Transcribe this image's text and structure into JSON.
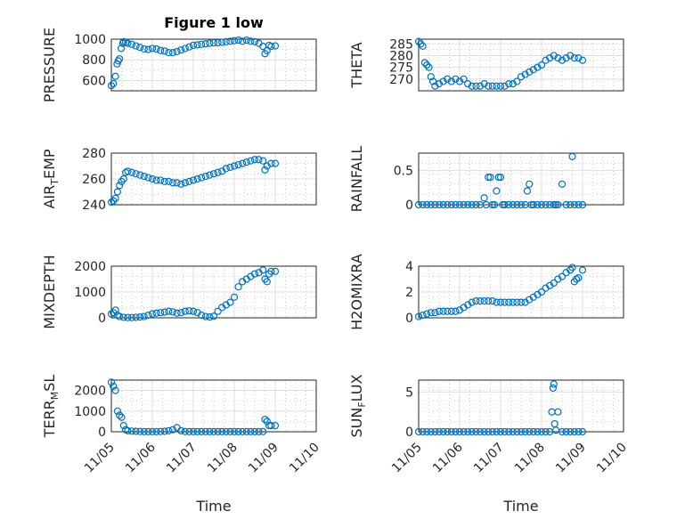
{
  "title": "Figure 1 low",
  "shared": {
    "xlabel": "Time",
    "xticks": [
      "11/05",
      "11/06",
      "11/07",
      "11/08",
      "11/09",
      "11/10"
    ],
    "marker_color": "#0072bd"
  },
  "chart_data": [
    {
      "type": "scatter",
      "ylabel": "PRESSURE",
      "ylim": [
        500,
        1000
      ],
      "yticks": [
        600,
        800,
        1000
      ],
      "x": [
        0,
        0.05,
        0.1,
        0.14,
        0.17,
        0.2,
        0.24,
        0.28,
        0.3,
        0.35,
        0.4,
        0.5,
        0.6,
        0.7,
        0.8,
        0.9,
        1.0,
        1.1,
        1.2,
        1.3,
        1.4,
        1.5,
        1.6,
        1.7,
        1.8,
        1.9,
        2.0,
        2.1,
        2.2,
        2.3,
        2.4,
        2.5,
        2.6,
        2.7,
        2.8,
        2.9,
        3.0,
        3.1,
        3.2,
        3.3,
        3.4,
        3.5,
        3.6,
        3.7,
        3.75,
        3.8,
        3.85,
        3.9,
        4.0
      ],
      "y": [
        550,
        570,
        640,
        760,
        790,
        810,
        910,
        960,
        975,
        970,
        960,
        950,
        935,
        920,
        905,
        900,
        910,
        905,
        890,
        885,
        870,
        870,
        880,
        895,
        910,
        925,
        940,
        945,
        950,
        955,
        960,
        965,
        965,
        970,
        975,
        980,
        985,
        990,
        980,
        990,
        980,
        975,
        960,
        930,
        860,
        890,
        940,
        930,
        935
      ]
    },
    {
      "type": "scatter",
      "ylabel": "THETA",
      "ylim": [
        265,
        287
      ],
      "yticks": [
        270,
        275,
        280,
        285
      ],
      "x": [
        0,
        0.05,
        0.1,
        0.15,
        0.2,
        0.25,
        0.3,
        0.35,
        0.4,
        0.5,
        0.6,
        0.7,
        0.8,
        0.9,
        1.0,
        1.1,
        1.2,
        1.3,
        1.4,
        1.5,
        1.6,
        1.7,
        1.8,
        1.9,
        2.0,
        2.1,
        2.2,
        2.3,
        2.4,
        2.5,
        2.6,
        2.7,
        2.8,
        2.9,
        3.0,
        3.1,
        3.2,
        3.3,
        3.4,
        3.5,
        3.6,
        3.7,
        3.8,
        3.9,
        4.0
      ],
      "y": [
        286,
        285,
        284,
        277,
        276,
        275,
        271,
        269,
        267,
        268,
        269,
        270,
        269,
        270,
        269,
        270,
        268,
        267,
        267,
        267,
        268,
        267,
        267,
        267,
        267,
        267,
        268,
        268,
        269,
        271,
        272,
        273,
        274,
        275,
        276,
        278,
        279,
        280,
        279,
        278,
        279,
        280,
        279,
        279,
        278
      ]
    },
    {
      "type": "scatter",
      "ylabel": "AIR_TEMP",
      "ylim": [
        240,
        280
      ],
      "yticks": [
        240,
        260,
        280
      ],
      "x": [
        0,
        0.05,
        0.1,
        0.15,
        0.2,
        0.25,
        0.3,
        0.35,
        0.4,
        0.5,
        0.6,
        0.7,
        0.8,
        0.9,
        1.0,
        1.1,
        1.2,
        1.3,
        1.4,
        1.5,
        1.6,
        1.7,
        1.8,
        1.9,
        2.0,
        2.1,
        2.2,
        2.3,
        2.4,
        2.5,
        2.6,
        2.7,
        2.8,
        2.9,
        3.0,
        3.1,
        3.2,
        3.3,
        3.4,
        3.5,
        3.6,
        3.7,
        3.75,
        3.8,
        3.9,
        4.0
      ],
      "y": [
        242,
        243,
        245,
        250,
        255,
        258,
        260,
        265,
        266,
        265,
        264,
        263,
        262,
        261,
        260,
        259,
        259,
        258,
        258,
        257,
        257,
        256,
        257,
        258,
        259,
        260,
        261,
        262,
        263,
        264,
        265,
        266,
        268,
        269,
        270,
        271,
        272,
        273,
        274,
        275,
        275,
        274,
        267,
        270,
        272,
        272
      ]
    },
    {
      "type": "scatter",
      "ylabel": "RAINFALL",
      "ylim": [
        0,
        0.75
      ],
      "yticks": [
        0,
        0.5
      ],
      "x": [
        0,
        0.1,
        0.2,
        0.3,
        0.4,
        0.5,
        0.6,
        0.7,
        0.8,
        0.9,
        1.0,
        1.1,
        1.2,
        1.3,
        1.4,
        1.5,
        1.6,
        1.65,
        1.7,
        1.75,
        1.8,
        1.85,
        1.9,
        1.95,
        2.0,
        2.05,
        2.1,
        2.2,
        2.3,
        2.4,
        2.5,
        2.6,
        2.65,
        2.7,
        2.75,
        2.8,
        2.9,
        3.0,
        3.1,
        3.2,
        3.3,
        3.35,
        3.4,
        3.5,
        3.6,
        3.7,
        3.75,
        3.8,
        3.9,
        4.0
      ],
      "y": [
        0,
        0,
        0,
        0,
        0,
        0,
        0,
        0,
        0,
        0,
        0,
        0,
        0,
        0,
        0,
        0,
        0.1,
        0,
        0.4,
        0.4,
        0,
        0,
        0.2,
        0.4,
        0.4,
        0,
        0,
        0,
        0,
        0,
        0,
        0,
        0.2,
        0.3,
        0,
        0,
        0,
        0,
        0,
        0,
        0,
        0,
        0,
        0.3,
        0,
        0,
        0.7,
        0,
        0,
        0
      ]
    },
    {
      "type": "scatter",
      "ylabel": "MIXDEPTH",
      "ylim": [
        0,
        2000
      ],
      "yticks": [
        0,
        1000,
        2000
      ],
      "x": [
        0,
        0.05,
        0.1,
        0.15,
        0.2,
        0.3,
        0.4,
        0.5,
        0.6,
        0.7,
        0.8,
        0.9,
        1.0,
        1.1,
        1.2,
        1.3,
        1.4,
        1.5,
        1.6,
        1.7,
        1.8,
        1.9,
        2.0,
        2.1,
        2.2,
        2.3,
        2.4,
        2.5,
        2.6,
        2.7,
        2.8,
        2.9,
        3.0,
        3.1,
        3.2,
        3.3,
        3.4,
        3.5,
        3.6,
        3.7,
        3.75,
        3.8,
        3.85,
        3.9,
        4.0
      ],
      "y": [
        150,
        200,
        300,
        100,
        50,
        20,
        10,
        10,
        20,
        30,
        50,
        100,
        150,
        180,
        200,
        220,
        250,
        230,
        180,
        200,
        250,
        270,
        250,
        200,
        100,
        50,
        30,
        60,
        250,
        400,
        500,
        600,
        800,
        1200,
        1400,
        1500,
        1600,
        1700,
        1750,
        1850,
        1500,
        1400,
        1700,
        1800,
        1800
      ]
    },
    {
      "type": "scatter",
      "ylabel": "H2OMIXRA",
      "ylim": [
        0,
        4
      ],
      "yticks": [
        0,
        2,
        4
      ],
      "x": [
        0,
        0.1,
        0.2,
        0.3,
        0.4,
        0.5,
        0.6,
        0.7,
        0.8,
        0.9,
        1.0,
        1.1,
        1.2,
        1.3,
        1.4,
        1.5,
        1.6,
        1.7,
        1.8,
        1.9,
        2.0,
        2.1,
        2.2,
        2.3,
        2.4,
        2.5,
        2.6,
        2.7,
        2.8,
        2.9,
        3.0,
        3.1,
        3.2,
        3.3,
        3.4,
        3.5,
        3.6,
        3.7,
        3.75,
        3.8,
        3.85,
        3.9,
        4.0
      ],
      "y": [
        0.1,
        0.2,
        0.3,
        0.4,
        0.4,
        0.5,
        0.5,
        0.5,
        0.5,
        0.5,
        0.6,
        0.8,
        1.0,
        1.2,
        1.3,
        1.3,
        1.3,
        1.3,
        1.3,
        1.2,
        1.2,
        1.2,
        1.2,
        1.2,
        1.2,
        1.2,
        1.2,
        1.4,
        1.6,
        1.8,
        2.0,
        2.3,
        2.5,
        2.7,
        3.0,
        3.2,
        3.5,
        3.7,
        3.9,
        2.8,
        3.0,
        3.1,
        3.7
      ]
    },
    {
      "type": "scatter",
      "ylabel": "TERR_MSL",
      "ylim": [
        0,
        2500
      ],
      "yticks": [
        0,
        1000,
        2000
      ],
      "x": [
        0,
        0.05,
        0.1,
        0.15,
        0.2,
        0.25,
        0.3,
        0.35,
        0.4,
        0.5,
        0.6,
        0.7,
        0.8,
        0.9,
        1.0,
        1.1,
        1.2,
        1.3,
        1.4,
        1.5,
        1.6,
        1.7,
        1.8,
        1.9,
        2.0,
        2.1,
        2.2,
        2.3,
        2.4,
        2.5,
        2.6,
        2.7,
        2.8,
        2.9,
        3.0,
        3.1,
        3.2,
        3.3,
        3.4,
        3.5,
        3.6,
        3.7,
        3.75,
        3.8,
        3.85,
        3.9,
        4.0
      ],
      "y": [
        2400,
        2200,
        2000,
        1000,
        800,
        700,
        300,
        100,
        50,
        30,
        20,
        10,
        5,
        5,
        5,
        5,
        10,
        20,
        50,
        100,
        200,
        50,
        10,
        5,
        5,
        5,
        5,
        5,
        5,
        5,
        5,
        5,
        5,
        5,
        5,
        5,
        5,
        5,
        5,
        5,
        5,
        10,
        600,
        500,
        300,
        300,
        300
      ]
    },
    {
      "type": "scatter",
      "ylabel": "SUN_FLUX",
      "ylim": [
        0,
        6.5
      ],
      "yticks": [
        0,
        5
      ],
      "x": [
        0,
        0.1,
        0.2,
        0.3,
        0.4,
        0.5,
        0.6,
        0.7,
        0.8,
        0.9,
        1.0,
        1.1,
        1.2,
        1.3,
        1.4,
        1.5,
        1.6,
        1.7,
        1.8,
        1.9,
        2.0,
        2.1,
        2.2,
        2.3,
        2.4,
        2.5,
        2.6,
        2.7,
        2.8,
        2.9,
        3.0,
        3.1,
        3.2,
        3.25,
        3.28,
        3.3,
        3.32,
        3.35,
        3.4,
        3.5,
        3.6,
        3.7,
        3.8,
        3.9,
        4.0
      ],
      "y": [
        0,
        0,
        0,
        0,
        0,
        0,
        0,
        0,
        0,
        0,
        0,
        0,
        0,
        0,
        0,
        0,
        0,
        0,
        0,
        0,
        0,
        0,
        0,
        0,
        0,
        0,
        0,
        0,
        0,
        0,
        0,
        0,
        0,
        2.5,
        5.5,
        6.0,
        1.0,
        0.2,
        2.5,
        0,
        0,
        0,
        0,
        0,
        0
      ]
    }
  ]
}
